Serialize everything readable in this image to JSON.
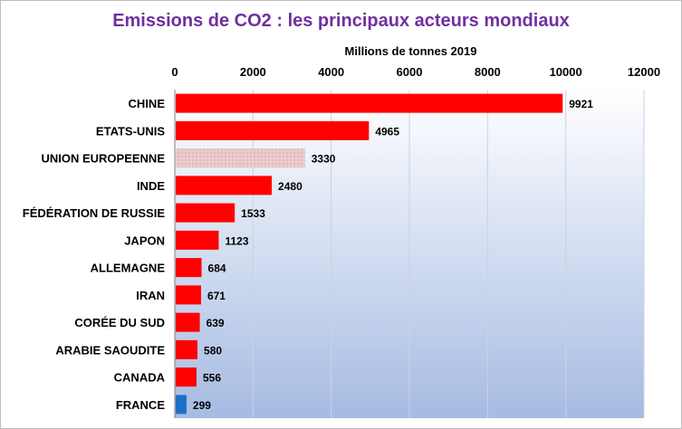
{
  "chart_data": {
    "type": "bar",
    "orientation": "horizontal",
    "title": "Emissions de CO2 : les principaux acteurs mondiaux",
    "xlabel": "Millions de tonnes 2019",
    "axis_position": "top",
    "xlim": [
      0,
      12000
    ],
    "ticks": [
      "0",
      "2000",
      "4000",
      "6000",
      "8000",
      "10000",
      "12000"
    ],
    "grid": true,
    "categories": [
      "CHINE",
      "ETATS-UNIS",
      "UNION EUROPEENNE",
      "INDE",
      "FÉDÉRATION DE RUSSIE",
      "JAPON",
      "ALLEMAGNE",
      "IRAN",
      "CORÉE DU SUD",
      "ARABIE  SAOUDITE",
      "CANADA",
      "FRANCE"
    ],
    "values": [
      9921,
      4965,
      3330,
      2480,
      1533,
      1123,
      684,
      671,
      639,
      580,
      556,
      299
    ],
    "colors": [
      "#ff0000",
      "#ff0000",
      "#e8c4c4",
      "#ff0000",
      "#ff0000",
      "#ff0000",
      "#ff0000",
      "#ff0000",
      "#ff0000",
      "#ff0000",
      "#ff0000",
      "#1f6fc5"
    ],
    "plot_background": "gradient white to light blue",
    "title_color": "#7030a0"
  }
}
